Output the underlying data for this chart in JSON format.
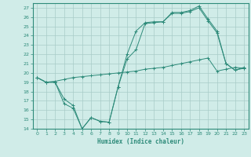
{
  "xlabel": "Humidex (Indice chaleur)",
  "color": "#2e8b7a",
  "bg_color": "#d0ece8",
  "grid_color": "#a8ccc8",
  "ylim": [
    14,
    27.5
  ],
  "xlim": [
    -0.5,
    23.5
  ],
  "yticks": [
    14,
    15,
    16,
    17,
    18,
    19,
    20,
    21,
    22,
    23,
    24,
    25,
    26,
    27
  ],
  "xticks": [
    0,
    1,
    2,
    3,
    4,
    5,
    6,
    7,
    8,
    9,
    10,
    11,
    12,
    13,
    14,
    15,
    16,
    17,
    18,
    19,
    20,
    21,
    22,
    23
  ],
  "x_values": [
    0,
    1,
    2,
    3,
    4,
    5,
    6,
    7,
    8,
    9,
    10,
    11,
    12,
    13,
    14,
    15,
    16,
    17,
    18,
    19,
    20,
    21,
    22,
    23
  ],
  "line1": [
    19.5,
    19.0,
    19.1,
    19.3,
    19.5,
    19.6,
    19.7,
    19.8,
    19.9,
    20.0,
    20.1,
    20.2,
    20.4,
    20.5,
    20.6,
    20.8,
    21.0,
    21.2,
    21.4,
    21.6,
    20.2,
    20.4,
    20.6,
    20.5
  ],
  "line2": [
    19.5,
    19.0,
    19.0,
    17.2,
    16.5,
    14.0,
    15.2,
    14.8,
    14.7,
    18.5,
    22.0,
    24.5,
    25.4,
    25.5,
    25.5,
    26.5,
    26.5,
    26.7,
    27.2,
    25.8,
    24.5,
    21.0,
    20.3,
    20.6
  ],
  "line3": [
    19.5,
    19.0,
    19.0,
    16.7,
    16.2,
    14.0,
    15.2,
    14.8,
    14.7,
    18.5,
    21.5,
    22.5,
    25.3,
    25.4,
    25.5,
    26.4,
    26.4,
    26.6,
    27.0,
    25.6,
    24.3,
    21.0,
    20.3,
    20.5
  ]
}
